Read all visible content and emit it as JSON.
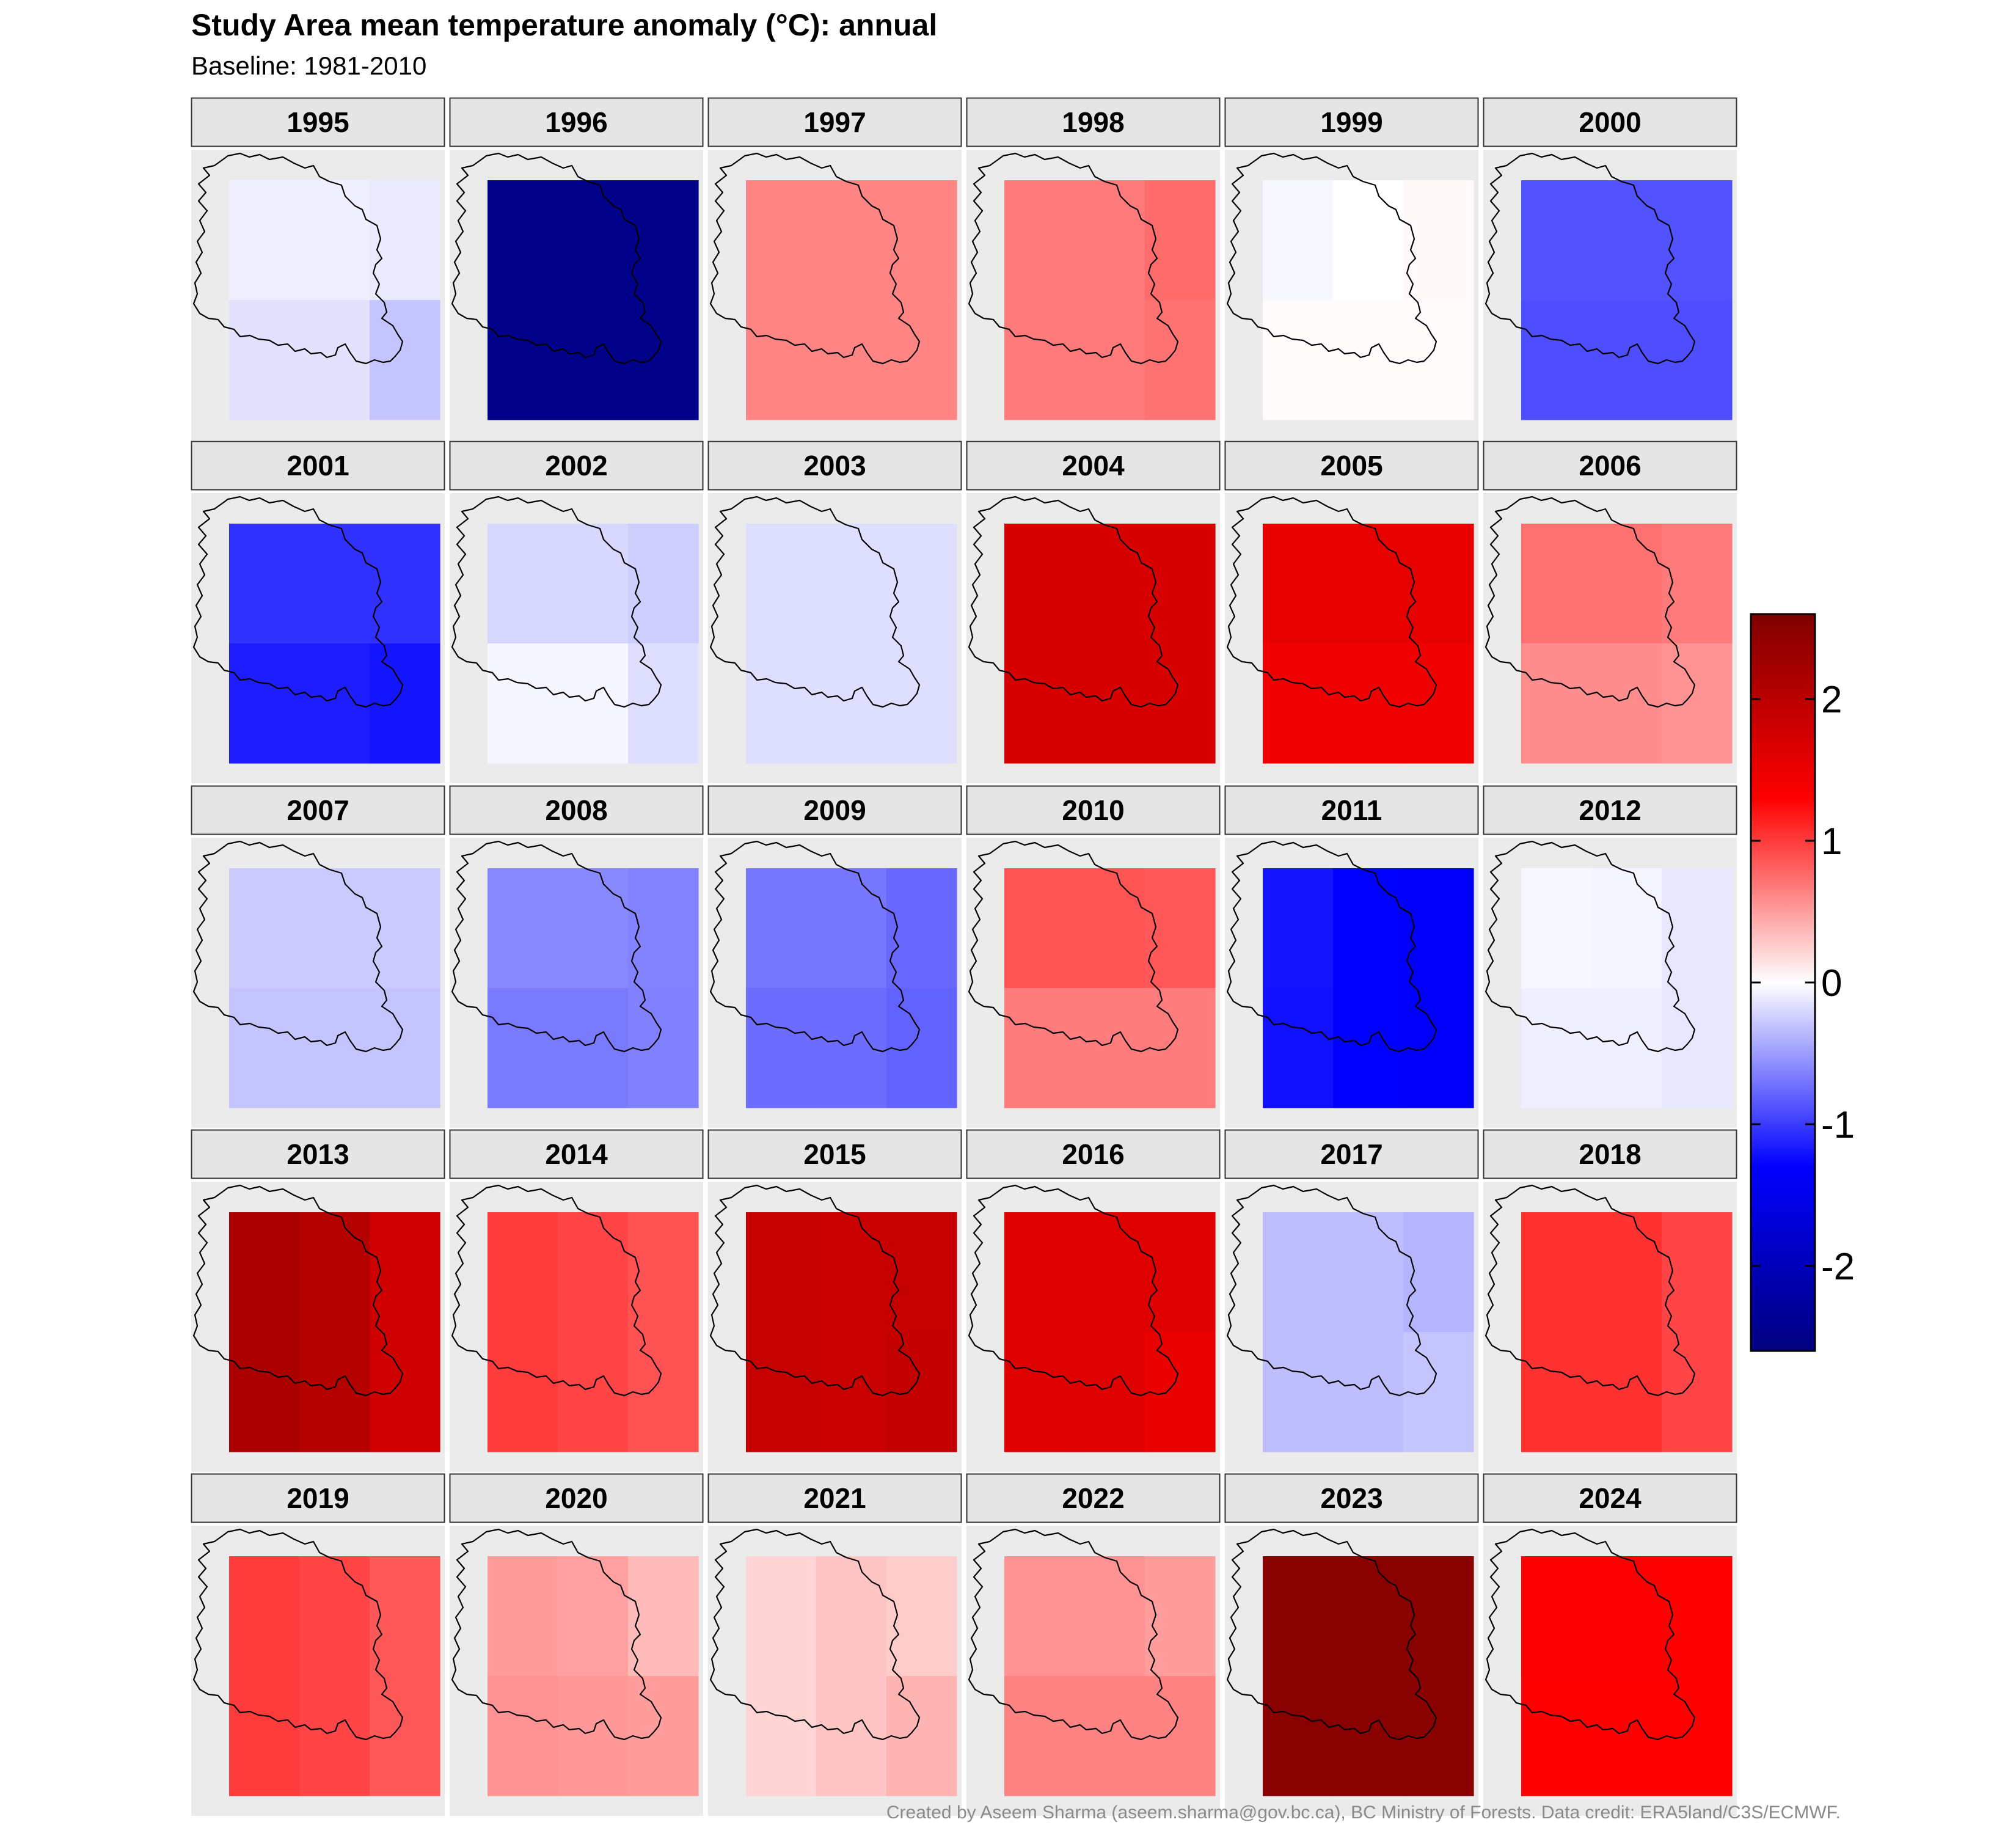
{
  "chart_data": {
    "type": "heatmap",
    "title": "Study Area mean temperature anomaly (°C): annual",
    "subtitle": "Baseline: 1981-2010",
    "caption": "Created by Aseem Sharma (aseem.sharma@gov.bc.ca), BC Ministry of Forests. Data credit: ERA5land/C3S/ECMWF.",
    "grid_layout": "each panel is a 3 columns x 2 rows grid of cells; values listed row-major from top-left",
    "colorbar": {
      "ticks": [
        -2,
        -1,
        0,
        1,
        2
      ],
      "tick_labels": [
        "-2",
        "-1",
        "0",
        "1",
        "2"
      ],
      "range": [
        -2.6,
        2.6
      ],
      "colors": {
        "low": "#00007f",
        "mid_low": "#0000ff",
        "zero": "#ffffff",
        "mid_high": "#ff0000",
        "high": "#7f0000"
      }
    },
    "panels": [
      {
        "year": "1995",
        "values": [
          -0.08,
          -0.08,
          -0.1,
          -0.15,
          -0.15,
          -0.3
        ]
      },
      {
        "year": "1996",
        "values": [
          -2.5,
          -2.5,
          -2.5,
          -2.5,
          -2.5,
          -2.5
        ]
      },
      {
        "year": "1997",
        "values": [
          0.62,
          0.62,
          0.62,
          0.62,
          0.62,
          0.62
        ]
      },
      {
        "year": "1998",
        "values": [
          0.68,
          0.68,
          0.75,
          0.68,
          0.68,
          0.72
        ]
      },
      {
        "year": "1999",
        "values": [
          -0.04,
          0.0,
          0.03,
          0.02,
          0.02,
          0.02
        ]
      },
      {
        "year": "2000",
        "values": [
          -0.88,
          -0.88,
          -0.88,
          -0.9,
          -0.9,
          -0.9
        ]
      },
      {
        "year": "2001",
        "values": [
          -1.05,
          -1.05,
          -1.05,
          -1.15,
          -1.15,
          -1.2
        ]
      },
      {
        "year": "2002",
        "values": [
          -0.2,
          -0.2,
          -0.25,
          -0.05,
          -0.05,
          -0.17
        ]
      },
      {
        "year": "2003",
        "values": [
          -0.17,
          -0.17,
          -0.17,
          -0.17,
          -0.17,
          -0.17
        ]
      },
      {
        "year": "2004",
        "values": [
          1.72,
          1.72,
          1.72,
          1.72,
          1.72,
          1.72
        ]
      },
      {
        "year": "2005",
        "values": [
          1.55,
          1.55,
          1.55,
          1.45,
          1.45,
          1.45
        ]
      },
      {
        "year": "2006",
        "values": [
          0.72,
          0.72,
          0.68,
          0.58,
          0.58,
          0.55
        ]
      },
      {
        "year": "2007",
        "values": [
          -0.27,
          -0.27,
          -0.27,
          -0.3,
          -0.3,
          -0.3
        ]
      },
      {
        "year": "2008",
        "values": [
          -0.6,
          -0.6,
          -0.63,
          -0.68,
          -0.68,
          -0.64
        ]
      },
      {
        "year": "2009",
        "values": [
          -0.7,
          -0.7,
          -0.77,
          -0.75,
          -0.75,
          -0.8
        ]
      },
      {
        "year": "2010",
        "values": [
          0.87,
          0.87,
          0.85,
          0.67,
          0.67,
          0.67
        ]
      },
      {
        "year": "2011",
        "values": [
          -1.2,
          -1.3,
          -1.35,
          -1.22,
          -1.3,
          -1.35
        ]
      },
      {
        "year": "2012",
        "values": [
          -0.04,
          -0.05,
          -0.12,
          -0.08,
          -0.08,
          -0.12
        ]
      },
      {
        "year": "2013",
        "values": [
          2.15,
          2.05,
          1.8,
          2.15,
          2.05,
          1.8
        ]
      },
      {
        "year": "2014",
        "values": [
          1.0,
          0.95,
          0.88,
          1.0,
          0.95,
          0.88
        ]
      },
      {
        "year": "2015",
        "values": [
          1.88,
          1.85,
          1.88,
          1.88,
          1.85,
          1.92
        ]
      },
      {
        "year": "2016",
        "values": [
          1.6,
          1.6,
          1.6,
          1.6,
          1.6,
          1.5
        ]
      },
      {
        "year": "2017",
        "values": [
          -0.33,
          -0.33,
          -0.38,
          -0.33,
          -0.33,
          -0.3
        ]
      },
      {
        "year": "2018",
        "values": [
          1.05,
          1.05,
          0.95,
          1.05,
          1.05,
          0.95
        ]
      },
      {
        "year": "2019",
        "values": [
          1.0,
          0.95,
          0.85,
          1.0,
          0.95,
          0.85
        ]
      },
      {
        "year": "2020",
        "values": [
          0.5,
          0.48,
          0.35,
          0.55,
          0.52,
          0.5
        ]
      },
      {
        "year": "2021",
        "values": [
          0.22,
          0.3,
          0.26,
          0.22,
          0.3,
          0.38
        ]
      },
      {
        "year": "2022",
        "values": [
          0.55,
          0.55,
          0.5,
          0.63,
          0.63,
          0.63
        ]
      },
      {
        "year": "2023",
        "values": [
          2.5,
          2.5,
          2.5,
          2.5,
          2.5,
          2.5
        ]
      },
      {
        "year": "2024",
        "values": [
          1.35,
          1.35,
          1.3,
          1.3,
          1.3,
          1.3
        ]
      }
    ]
  }
}
